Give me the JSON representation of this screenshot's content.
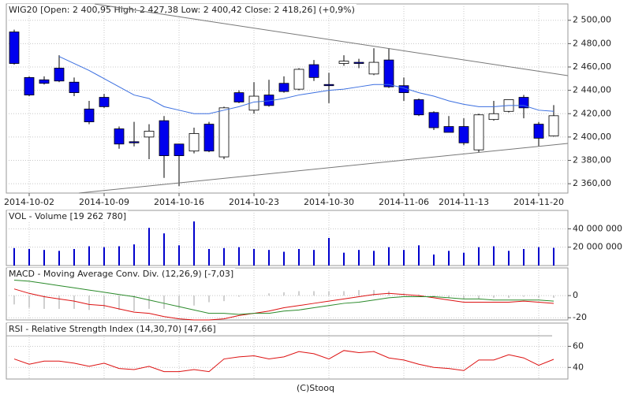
{
  "chart_data": [
    {
      "type": "candlestick",
      "title": "WIG20 [Open: 2 400,95  High: 2 427,38  Low: 2 400,42  Close: 2 418,26] (+0,9%)",
      "categories": [
        null,
        "2014-10-02",
        null,
        null,
        null,
        null,
        "2014-10-09",
        null,
        null,
        null,
        null,
        "2014-10-16",
        null,
        null,
        null,
        null,
        "2014-10-23",
        null,
        null,
        null,
        null,
        "2014-10-30",
        null,
        null,
        null,
        null,
        "2014-11-06",
        null,
        null,
        null,
        "2014-11-13",
        null,
        null,
        null,
        null,
        "2014-11-20",
        null
      ],
      "open": [
        2490,
        2451,
        2449,
        2459,
        2447,
        2424,
        2434,
        2407,
        2396,
        2400,
        2414,
        2394,
        2388,
        2411,
        2383,
        2438,
        2423,
        2436,
        2446,
        2441,
        2462,
        2445,
        2463,
        2464,
        2454,
        2466,
        2444,
        2432,
        2421,
        2409,
        2409,
        2389,
        2415,
        2422,
        2434,
        2411,
        2400.95
      ],
      "high": [
        2492,
        2452,
        2452,
        2470,
        2451,
        2431,
        2437,
        2409,
        2413,
        2411,
        2418,
        2394,
        2408,
        2413,
        2426,
        2440,
        2447,
        2449,
        2452,
        2459,
        2466,
        2455,
        2470,
        2467,
        2476,
        2476,
        2451,
        2433,
        2422,
        2418,
        2416,
        2420,
        2431,
        2432,
        2436,
        2413,
        2427.38
      ],
      "low": [
        2462,
        2435,
        2445,
        2447,
        2435,
        2411,
        2425,
        2390,
        2392,
        2381,
        2365,
        2358,
        2386,
        2387,
        2381,
        2429,
        2420,
        2426,
        2438,
        2440,
        2448,
        2429,
        2461,
        2459,
        2453,
        2442,
        2431,
        2418,
        2406,
        2404,
        2393,
        2387,
        2414,
        2421,
        2416,
        2392,
        2400.42
      ],
      "close": [
        2463,
        2436,
        2446,
        2448,
        2438,
        2413,
        2426,
        2394,
        2395,
        2405,
        2384,
        2384,
        2403,
        2388,
        2425,
        2430,
        2435,
        2427,
        2439,
        2458,
        2451,
        2444,
        2465,
        2463,
        2464,
        2443,
        2438,
        2419,
        2408,
        2404,
        2395,
        2419,
        2420,
        2432,
        2425,
        2399,
        2418.26
      ],
      "up_color": "#ffffff",
      "down_color": "#0000ee",
      "overlay": {
        "color": "#3b6fe0",
        "values": [
          null,
          null,
          null,
          2469,
          2463,
          2457,
          2450,
          2443,
          2436,
          2433,
          2426,
          2423,
          2420,
          2420,
          2423,
          2426,
          2430,
          2431,
          2433,
          2436,
          2438,
          2440,
          2441,
          2443,
          2445,
          2445,
          2442,
          2438,
          2435,
          2431,
          2428,
          2426,
          2426,
          2427,
          2427,
          2423,
          2422
        ]
      },
      "ylim": [
        2352,
        2514
      ],
      "yticks": [
        {
          "value": 2360,
          "label": "2 360,00"
        },
        {
          "value": 2380,
          "label": "2 380,00"
        },
        {
          "value": 2400,
          "label": "2 400,00"
        },
        {
          "value": 2420,
          "label": "2 420,00"
        },
        {
          "value": 2440,
          "label": "2 440,00"
        },
        {
          "value": 2460,
          "label": "2 460,00"
        },
        {
          "value": 2480,
          "label": "2 480,00"
        },
        {
          "value": 2500,
          "label": "2 500,00"
        }
      ],
      "grid": true
    },
    {
      "type": "bar",
      "title": "VOL - Volume [19 262 780]",
      "values": [
        19000000,
        18000000,
        17000000,
        16000000,
        18000000,
        21000000,
        20000000,
        21000000,
        23000000,
        41000000,
        35000000,
        22000000,
        48000000,
        18000000,
        19000000,
        20000000,
        18000000,
        17000000,
        15000000,
        18000000,
        17000000,
        30000000,
        14000000,
        17000000,
        16000000,
        20000000,
        17000000,
        22000000,
        12000000,
        16000000,
        14000000,
        20000000,
        21000000,
        16000000,
        18000000,
        20000000,
        19262780
      ],
      "color": "#0000cc",
      "ylim": [
        0,
        60000000
      ],
      "yticks": [
        {
          "value": 20000000,
          "label": "20 000 000"
        },
        {
          "value": 40000000,
          "label": "40 000 000"
        }
      ],
      "grid": true
    },
    {
      "type": "line",
      "title": "MACD - Moving Average Conv. Div. (12,26,9) [-7,03]",
      "series": [
        {
          "color": "#dd1111",
          "values": [
            6,
            2,
            -1,
            -3,
            -5,
            -8,
            -9,
            -12,
            -15,
            -16,
            -19,
            -21,
            -22,
            -22,
            -21,
            -18,
            -16,
            -14,
            -11,
            -9,
            -7,
            -5,
            -3,
            -1,
            1,
            2,
            1,
            0,
            -2,
            -4,
            -6,
            -6,
            -6,
            -6,
            -5,
            -6,
            -7.03
          ]
        },
        {
          "color": "#2a8a2a",
          "values": [
            14,
            13,
            11,
            9,
            7,
            5,
            3,
            1,
            -1,
            -4,
            -7,
            -10,
            -13,
            -16,
            -16,
            -17,
            -16,
            -16,
            -14,
            -13,
            -11,
            -9,
            -7,
            -6,
            -4,
            -2,
            -1,
            -1,
            -1,
            -2,
            -3,
            -3,
            -4,
            -4,
            -4,
            -4,
            -5
          ]
        }
      ],
      "bars": {
        "color": "#a0a0a0",
        "values": [
          -8,
          -11,
          -12,
          -12,
          -12,
          -13,
          -12,
          -13,
          -14,
          -12,
          -12,
          -11,
          -9,
          -6,
          -5,
          -1,
          0,
          2,
          3,
          4,
          4,
          4,
          4,
          5,
          5,
          4,
          2,
          1,
          -1,
          -2,
          -3,
          -3,
          -2,
          -2,
          -1,
          -2,
          -2
        ]
      },
      "ylim": [
        -22,
        25
      ],
      "yticks": [
        -20,
        0
      ],
      "grid": true
    },
    {
      "type": "line",
      "title": "RSI - Relative Strength Index (14,30,70) [47,66]",
      "series": [
        {
          "color": "#dd1111",
          "values": [
            48,
            43,
            46,
            46,
            44,
            41,
            44,
            39,
            38,
            41,
            36,
            36,
            38,
            36,
            48,
            50,
            51,
            48,
            50,
            55,
            53,
            48,
            56,
            54,
            55,
            49,
            47,
            43,
            40,
            39,
            37,
            47,
            47,
            52,
            49,
            42,
            47.66
          ]
        }
      ],
      "reference_lines": [
        70
      ],
      "reference_color": "#9a9a9a",
      "ylim": [
        29,
        82
      ],
      "yticks": [
        40,
        60
      ],
      "grid": true
    }
  ],
  "footer": "(C)Stooq"
}
